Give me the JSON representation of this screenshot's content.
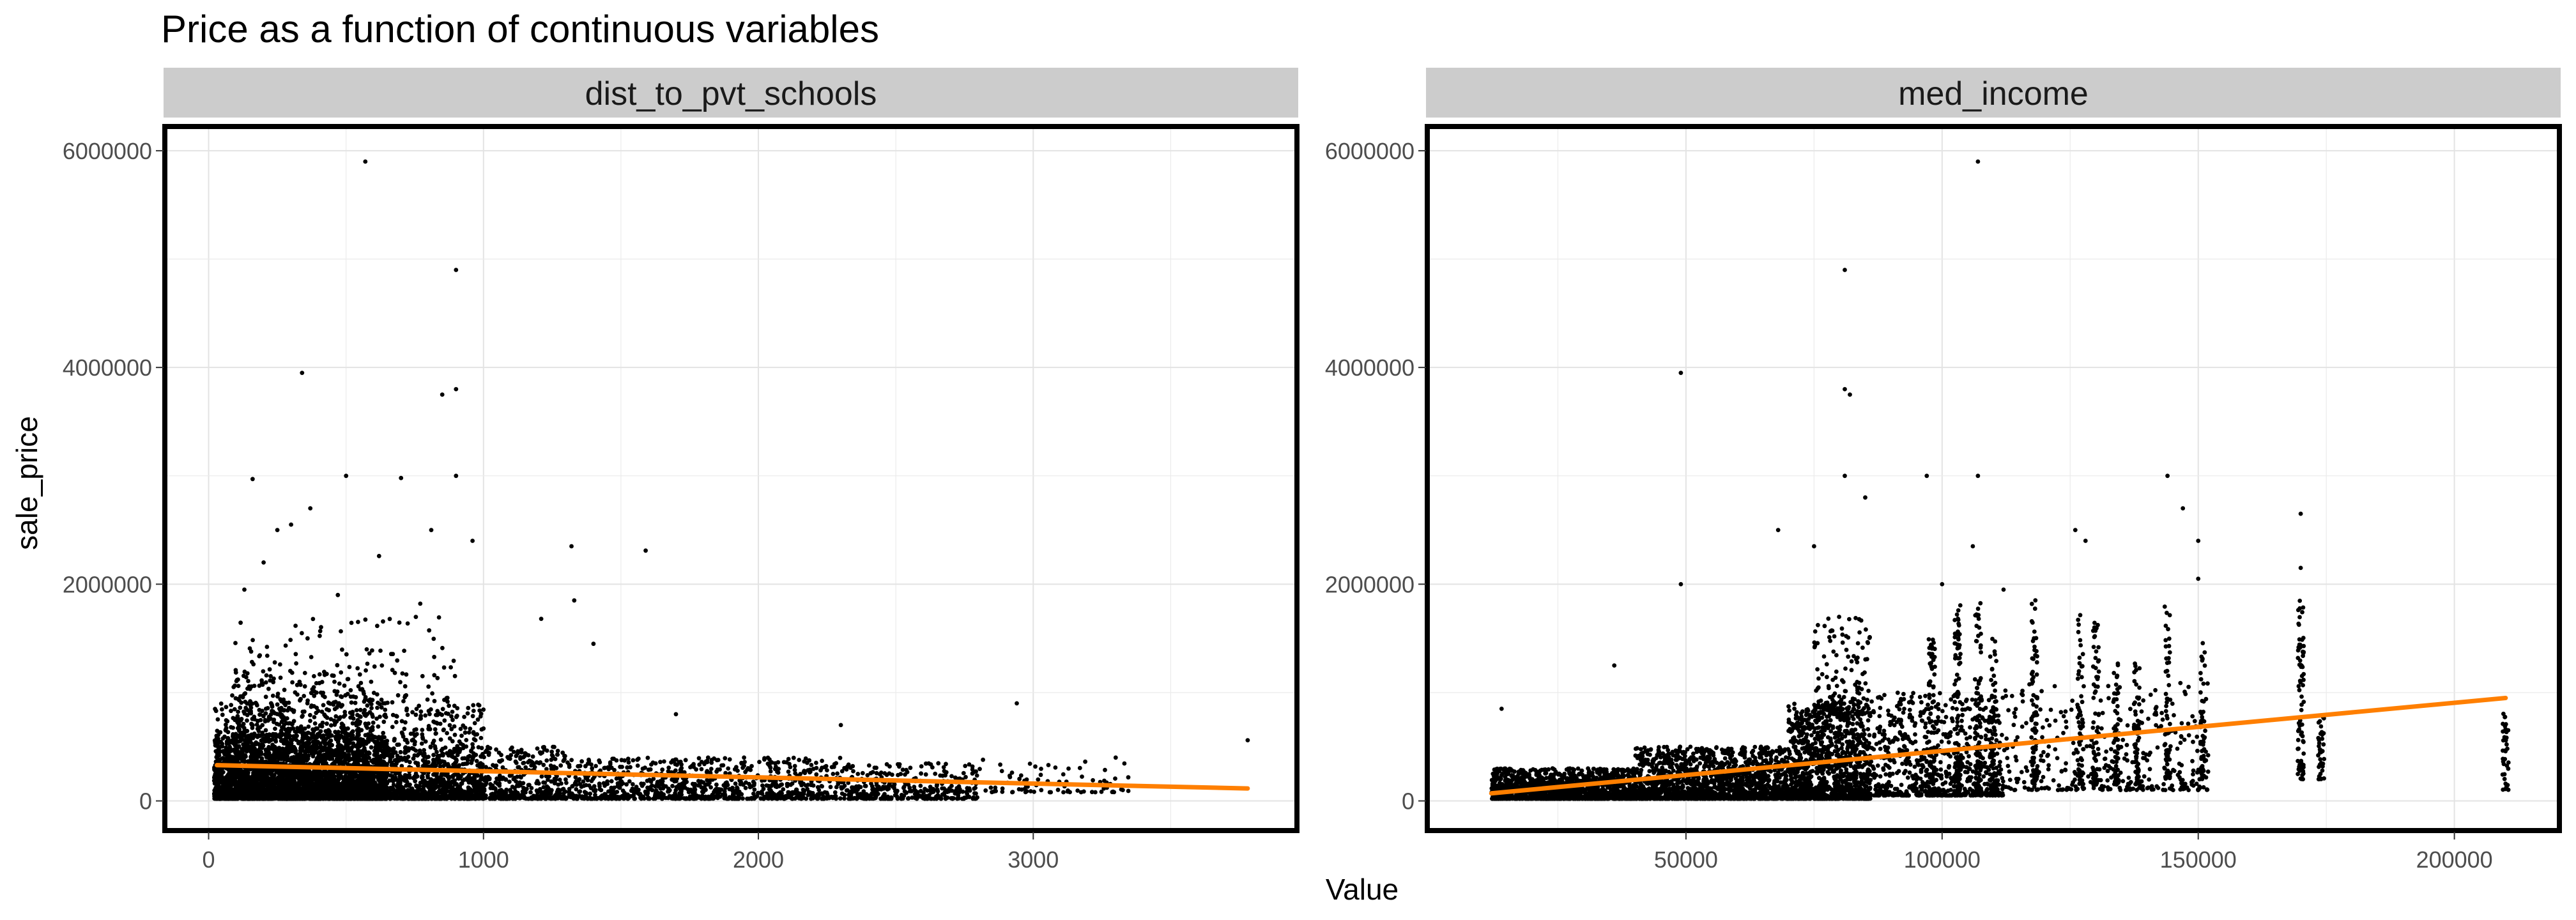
{
  "title": "Price as a function of continuous variables",
  "chart_data": {
    "type": "scatter",
    "title": "Price as a function of continuous variables",
    "xlabel": "Value",
    "ylabel": "sale_price",
    "trend_color": "#FF7F00",
    "point_color": "#000000",
    "strip_color": "#CCCCCC",
    "grid": true,
    "y_ticks": [
      0,
      2000000,
      4000000,
      6000000
    ],
    "y_tick_labels": [
      "0",
      "2000000",
      "4000000",
      "6000000"
    ],
    "ylim": [
      -250000,
      6200000
    ],
    "panels": [
      {
        "facet": "dist_to_pvt_schools",
        "xlim": [
          -150,
          3950
        ],
        "x_ticks": [
          0,
          1000,
          2000,
          3000
        ],
        "x_tick_labels": [
          "0",
          "1000",
          "2000",
          "3000"
        ],
        "trend": {
          "x": [
            30,
            3780
          ],
          "y": [
            330000,
            115000
          ]
        },
        "outliers": [
          [
            570,
            5900000
          ],
          [
            900,
            4900000
          ],
          [
            340,
            3950000
          ],
          [
            900,
            3800000
          ],
          [
            850,
            3750000
          ],
          [
            160,
            2970000
          ],
          [
            500,
            3000000
          ],
          [
            700,
            2980000
          ],
          [
            900,
            3000000
          ],
          [
            370,
            2700000
          ],
          [
            1320,
            2350000
          ],
          [
            1590,
            2310000
          ],
          [
            960,
            2400000
          ],
          [
            810,
            2500000
          ],
          [
            620,
            2260000
          ],
          [
            250,
            2500000
          ],
          [
            300,
            2550000
          ],
          [
            200,
            2200000
          ],
          [
            1210,
            1680000
          ],
          [
            1400,
            1450000
          ],
          [
            1700,
            800000
          ],
          [
            2940,
            900000
          ],
          [
            3780,
            560000
          ],
          [
            1330,
            1850000
          ],
          [
            770,
            1820000
          ],
          [
            470,
            1900000
          ],
          [
            130,
            1950000
          ],
          [
            360,
            1500000
          ],
          [
            2300,
            700000
          ],
          [
            3300,
            400000
          ]
        ],
        "clusters": [
          {
            "x": [
              20,
              650
            ],
            "y": [
              20000,
              600000
            ],
            "n": 2400
          },
          {
            "x": [
              20,
              1000
            ],
            "y": [
              20000,
              900000
            ],
            "n": 1400
          },
          {
            "x": [
              20,
              1300
            ],
            "y": [
              20000,
              500000
            ],
            "n": 1600
          },
          {
            "x": [
              1300,
              2300
            ],
            "y": [
              20000,
              400000
            ],
            "n": 900
          },
          {
            "x": [
              2300,
              2800
            ],
            "y": [
              20000,
              350000
            ],
            "n": 350
          },
          {
            "x": [
              2800,
              3350
            ],
            "y": [
              80000,
              380000
            ],
            "n": 80
          },
          {
            "x": [
              80,
              900
            ],
            "y": [
              900000,
              1700000
            ],
            "n": 150
          },
          {
            "x": [
              80,
              600
            ],
            "y": [
              600000,
              1200000
            ],
            "n": 300
          }
        ]
      },
      {
        "facet": "med_income",
        "xlim": [
          0,
          220000
        ],
        "x_ticks": [
          50000,
          100000,
          150000,
          200000
        ],
        "x_tick_labels": [
          "50000",
          "100000",
          "150000",
          "200000"
        ],
        "trend": {
          "x": [
            12000,
            210000
          ],
          "y": [
            70000,
            950000
          ]
        },
        "outliers": [
          [
            107000,
            5900000
          ],
          [
            81000,
            4900000
          ],
          [
            49000,
            3950000
          ],
          [
            81000,
            3800000
          ],
          [
            82000,
            3750000
          ],
          [
            81000,
            3000000
          ],
          [
            107000,
            3000000
          ],
          [
            97000,
            3000000
          ],
          [
            144000,
            3000000
          ],
          [
            147000,
            2700000
          ],
          [
            170000,
            2650000
          ],
          [
            126000,
            2500000
          ],
          [
            128000,
            2400000
          ],
          [
            68000,
            2500000
          ],
          [
            85000,
            2800000
          ],
          [
            49000,
            2000000
          ],
          [
            150000,
            2400000
          ],
          [
            106000,
            2350000
          ],
          [
            75000,
            2350000
          ],
          [
            170000,
            2150000
          ],
          [
            150000,
            2050000
          ],
          [
            36000,
            1250000
          ],
          [
            14000,
            850000
          ],
          [
            112000,
            1950000
          ],
          [
            100000,
            2000000
          ]
        ],
        "clusters": [
          {
            "x": [
              12000,
              40000
            ],
            "y": [
              20000,
              300000
            ],
            "n": 1500
          },
          {
            "x": [
              40000,
              70000
            ],
            "y": [
              20000,
              500000
            ],
            "n": 1500
          },
          {
            "x": [
              70000,
              86000
            ],
            "y": [
              20000,
              900000
            ],
            "n": 1200
          },
          {
            "x": [
              86000,
              112000
            ],
            "y": [
              50000,
              1000000
            ],
            "n": 700
          },
          {
            "x": [
              112000,
              152000
            ],
            "y": [
              100000,
              1100000
            ],
            "n": 350
          },
          {
            "x": [
              75000,
              86000
            ],
            "y": [
              800000,
              1700000
            ],
            "n": 150
          }
        ],
        "columns": [
          {
            "x": 98000,
            "y": [
              50000,
              1500000
            ],
            "n": 90
          },
          {
            "x": 103000,
            "y": [
              50000,
              1900000
            ],
            "n": 90
          },
          {
            "x": 107000,
            "y": [
              50000,
              1850000
            ],
            "n": 90
          },
          {
            "x": 110000,
            "y": [
              50000,
              1500000
            ],
            "n": 80
          },
          {
            "x": 118000,
            "y": [
              150000,
              1900000
            ],
            "n": 80
          },
          {
            "x": 127000,
            "y": [
              150000,
              1750000
            ],
            "n": 60
          },
          {
            "x": 130000,
            "y": [
              150000,
              1650000
            ],
            "n": 60
          },
          {
            "x": 134000,
            "y": [
              150000,
              1300000
            ],
            "n": 50
          },
          {
            "x": 138000,
            "y": [
              150000,
              1300000
            ],
            "n": 50
          },
          {
            "x": 144000,
            "y": [
              200000,
              1800000
            ],
            "n": 60
          },
          {
            "x": 151000,
            "y": [
              200000,
              1500000
            ],
            "n": 50
          },
          {
            "x": 170000,
            "y": [
              200000,
              1850000
            ],
            "n": 80
          },
          {
            "x": 174000,
            "y": [
              200000,
              800000
            ],
            "n": 40
          },
          {
            "x": 210000,
            "y": [
              100000,
              850000
            ],
            "n": 40
          }
        ]
      }
    ]
  }
}
